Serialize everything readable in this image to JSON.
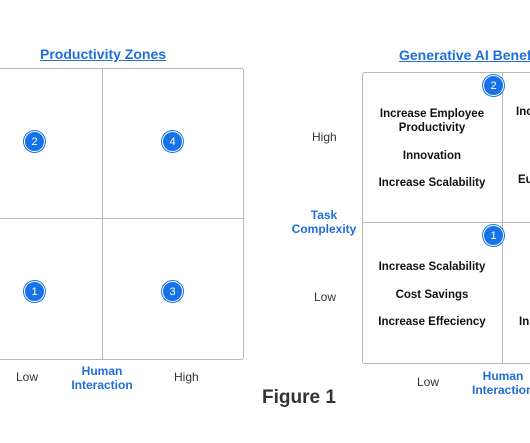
{
  "left_chart": {
    "title": "Productivity Zones",
    "badges": [
      "2",
      "4",
      "1",
      "3"
    ],
    "x_axis": {
      "low": "Low",
      "label_line1": "Human",
      "label_line2": "Interaction",
      "high": "High"
    }
  },
  "y_axis": {
    "high": "High",
    "label_line1": "Task",
    "label_line2": "Complexity",
    "low": "Low"
  },
  "right_chart": {
    "title": "Generative AI  Benefits",
    "top_left_badge": "2",
    "bottom_left_badge": "1",
    "top_left_items": [
      "Increase Employee Productivity",
      "Innovation",
      "Increase Scalability"
    ],
    "bottom_left_items": [
      "Increase Scalability",
      "Cost Savings",
      "Increase Effeciency"
    ],
    "top_right_partial": [
      "Inc",
      "Eu"
    ],
    "bottom_right_partial": [
      "In"
    ],
    "x_axis": {
      "low": "Low",
      "label_line1": "Human",
      "label_line2": "Interaction"
    }
  },
  "caption": "Figure 1"
}
